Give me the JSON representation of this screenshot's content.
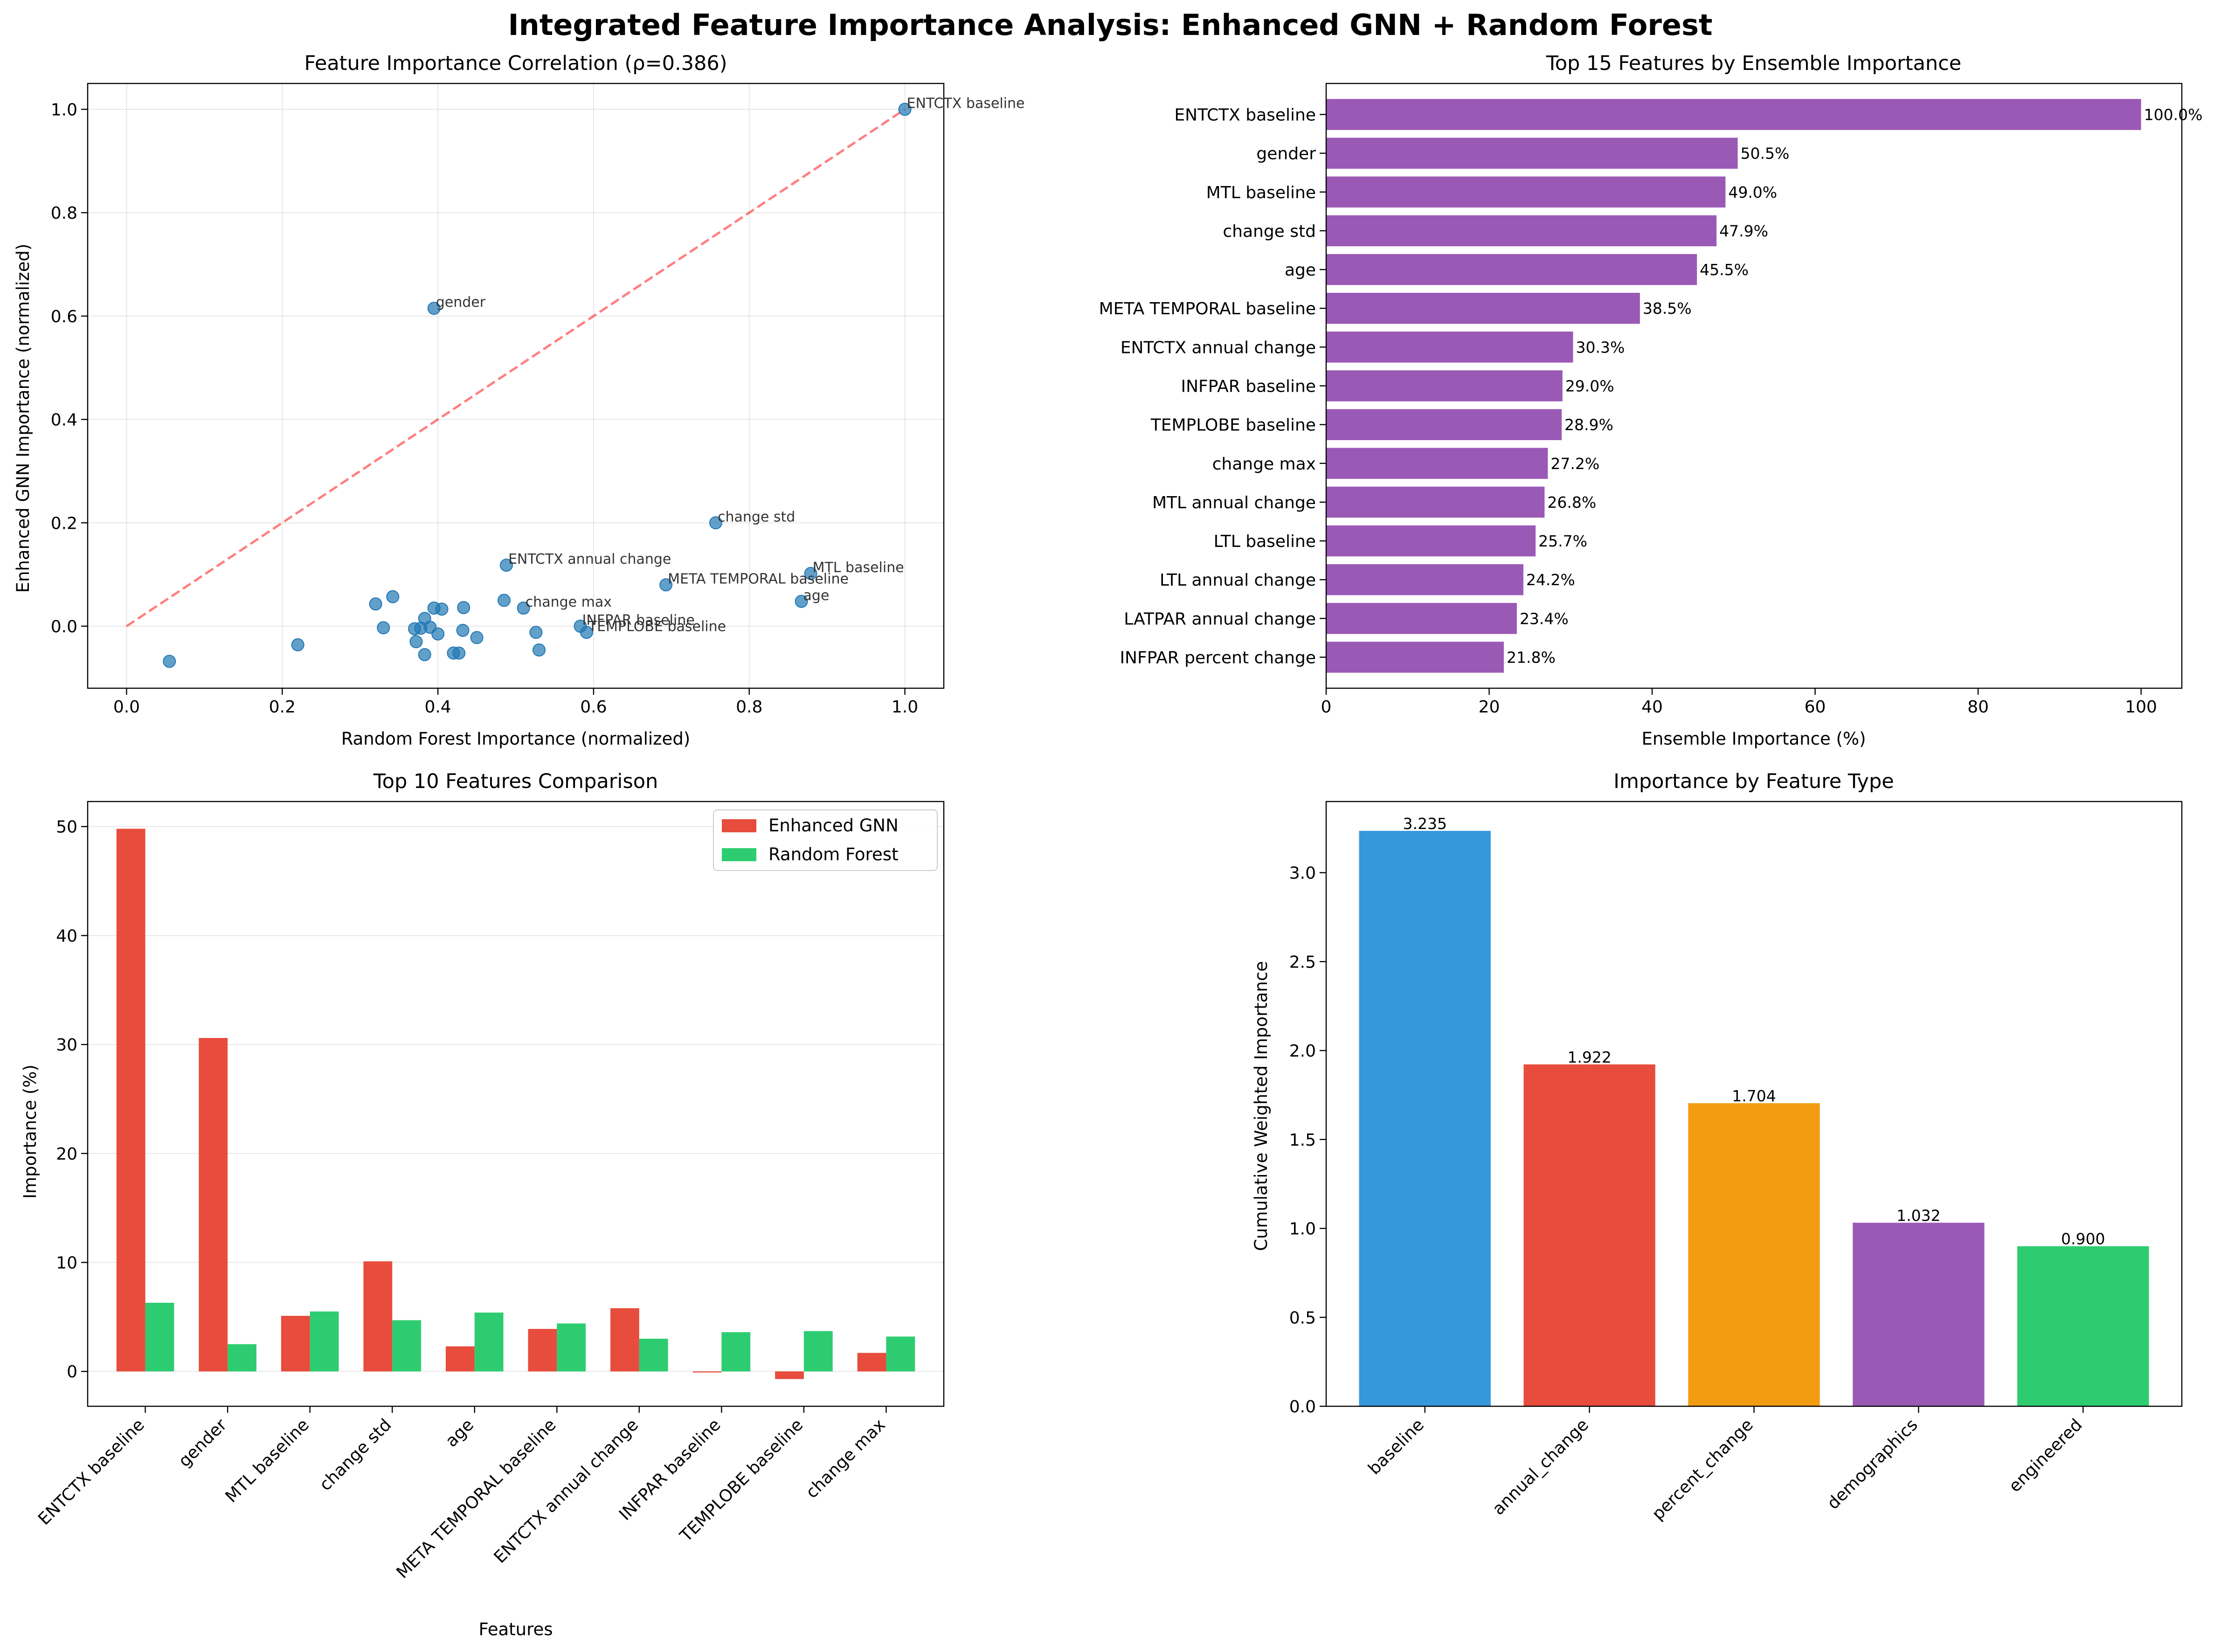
{
  "figure": {
    "title": "Integrated Feature Importance Analysis: Enhanced GNN + Random Forest"
  },
  "chart_data": [
    {
      "type": "scatter",
      "title": "Feature Importance Correlation (ρ=0.386)",
      "xlabel": "Random Forest Importance (normalized)",
      "ylabel": "Enhanced GNN Importance (normalized)",
      "xlim": [
        -0.05,
        1.05
      ],
      "ylim": [
        -0.12,
        1.05
      ],
      "xticks": [
        "0.0",
        "0.2",
        "0.4",
        "0.6",
        "0.8",
        "1.0"
      ],
      "yticks": [
        "0.0",
        "0.2",
        "0.4",
        "0.6",
        "0.8",
        "1.0"
      ],
      "grid": true,
      "color": "#1f77b4",
      "reference_line": {
        "from": [
          0,
          0
        ],
        "to": [
          1,
          1
        ],
        "color": "#ff0000",
        "style": "dashed"
      },
      "points": [
        {
          "x": 1.0,
          "y": 1.0,
          "label": "ENTCTX baseline"
        },
        {
          "x": 0.395,
          "y": 0.615,
          "label": "gender"
        },
        {
          "x": 0.757,
          "y": 0.2,
          "label": "change std"
        },
        {
          "x": 0.488,
          "y": 0.118,
          "label": "ENTCTX annual change"
        },
        {
          "x": 0.879,
          "y": 0.102,
          "label": "MTL baseline"
        },
        {
          "x": 0.693,
          "y": 0.08,
          "label": "META TEMPORAL baseline"
        },
        {
          "x": 0.867,
          "y": 0.048,
          "label": "age"
        },
        {
          "x": 0.51,
          "y": 0.035,
          "label": "change max"
        },
        {
          "x": 0.583,
          "y": 0.0,
          "label": "INFPAR baseline"
        },
        {
          "x": 0.591,
          "y": -0.012,
          "label": "TEMPLOBE baseline"
        },
        {
          "x": 0.055,
          "y": -0.068
        },
        {
          "x": 0.22,
          "y": -0.036
        },
        {
          "x": 0.32,
          "y": 0.043
        },
        {
          "x": 0.342,
          "y": 0.057
        },
        {
          "x": 0.33,
          "y": -0.003
        },
        {
          "x": 0.37,
          "y": -0.005
        },
        {
          "x": 0.372,
          "y": -0.03
        },
        {
          "x": 0.378,
          "y": -0.004
        },
        {
          "x": 0.383,
          "y": 0.015
        },
        {
          "x": 0.383,
          "y": -0.055
        },
        {
          "x": 0.39,
          "y": -0.002
        },
        {
          "x": 0.395,
          "y": 0.035
        },
        {
          "x": 0.4,
          "y": -0.015
        },
        {
          "x": 0.405,
          "y": 0.033
        },
        {
          "x": 0.42,
          "y": -0.052
        },
        {
          "x": 0.427,
          "y": -0.052
        },
        {
          "x": 0.433,
          "y": 0.036
        },
        {
          "x": 0.432,
          "y": -0.008
        },
        {
          "x": 0.45,
          "y": -0.022
        },
        {
          "x": 0.485,
          "y": 0.05
        },
        {
          "x": 0.526,
          "y": -0.012
        },
        {
          "x": 0.53,
          "y": -0.046
        }
      ]
    },
    {
      "type": "bar",
      "orientation": "horizontal",
      "title": "Top 15 Features by Ensemble Importance",
      "xlabel": "Ensemble Importance (%)",
      "ylabel": "",
      "xlim": [
        0,
        105
      ],
      "xticks": [
        "0",
        "20",
        "40",
        "60",
        "80",
        "100"
      ],
      "color": "#9b59b6",
      "categories": [
        "ENTCTX baseline",
        "gender",
        "MTL baseline",
        "change std",
        "age",
        "META TEMPORAL baseline",
        "ENTCTX annual change",
        "INFPAR baseline",
        "TEMPLOBE baseline",
        "change max",
        "MTL annual change",
        "LTL baseline",
        "LTL annual change",
        "LATPAR annual change",
        "INFPAR percent change"
      ],
      "values": [
        100.0,
        50.5,
        49.0,
        47.9,
        45.5,
        38.5,
        30.3,
        29.0,
        28.9,
        27.2,
        26.8,
        25.7,
        24.2,
        23.4,
        21.8
      ],
      "data_labels": [
        "100.0%",
        "50.5%",
        "49.0%",
        "47.9%",
        "45.5%",
        "38.5%",
        "30.3%",
        "29.0%",
        "28.9%",
        "27.2%",
        "26.8%",
        "25.7%",
        "24.2%",
        "23.4%",
        "21.8%"
      ]
    },
    {
      "type": "bar",
      "title": "Top 10 Features Comparison",
      "xlabel": "Features",
      "ylabel": "Importance (%)",
      "ylim": [
        -3.2,
        52.3
      ],
      "yticks": [
        "0",
        "10",
        "20",
        "30",
        "40",
        "50"
      ],
      "grid": true,
      "legend_position": "top-right",
      "categories": [
        "ENTCTX baseline",
        "gender",
        "MTL baseline",
        "change std",
        "age",
        "META TEMPORAL baseline",
        "ENTCTX annual change",
        "INFPAR baseline",
        "TEMPLOBE baseline",
        "change max"
      ],
      "series": [
        {
          "name": "Enhanced GNN",
          "color": "#e74c3c",
          "values": [
            49.8,
            30.6,
            5.1,
            10.1,
            2.3,
            3.9,
            5.8,
            -0.1,
            -0.7,
            1.7
          ]
        },
        {
          "name": "Random Forest",
          "color": "#2ecc71",
          "values": [
            6.3,
            2.5,
            5.5,
            4.7,
            5.4,
            4.4,
            3.0,
            3.6,
            3.7,
            3.2
          ]
        }
      ]
    },
    {
      "type": "bar",
      "title": "Importance by Feature Type",
      "xlabel": "",
      "ylabel": "Cumulative Weighted Importance",
      "ylim": [
        0,
        3.4
      ],
      "yticks": [
        "0.0",
        "0.5",
        "1.0",
        "1.5",
        "2.0",
        "2.5",
        "3.0"
      ],
      "categories": [
        "baseline",
        "annual_change",
        "percent_change",
        "demographics",
        "engineered"
      ],
      "values": [
        3.235,
        1.922,
        1.704,
        1.032,
        0.9
      ],
      "data_labels": [
        "3.235",
        "1.922",
        "1.704",
        "1.032",
        "0.900"
      ],
      "colors": [
        "#3498db",
        "#e74c3c",
        "#f39c12",
        "#9b59b6",
        "#2ecc71"
      ]
    }
  ]
}
